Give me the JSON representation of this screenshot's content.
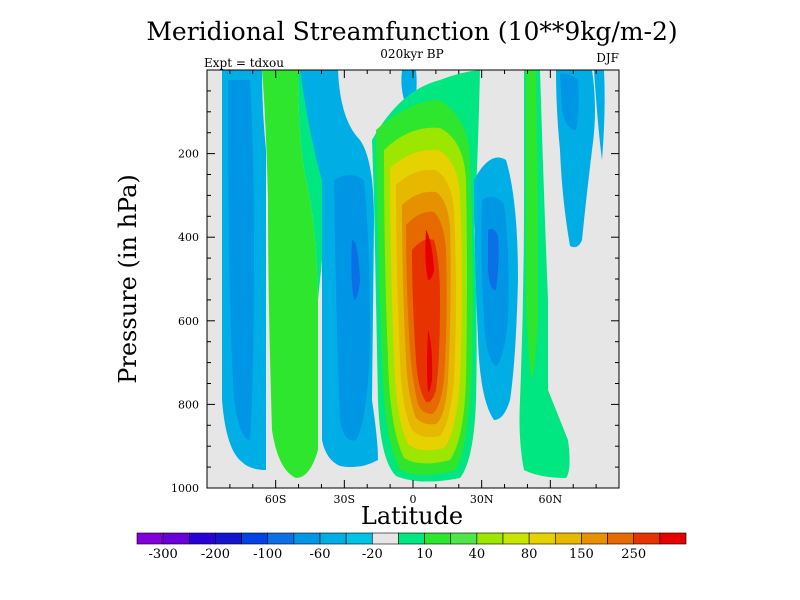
{
  "chart_data": {
    "type": "heatmap",
    "title": "Meridional Streamfunction (10**9kg/m-2)",
    "left_label": "Expt = tdxou",
    "center_label": "020kyr BP",
    "right_label": "DJF",
    "xlabel": "Latitude",
    "ylabel": "Pressure (in hPa)",
    "xlim": [
      -90,
      90
    ],
    "ylim": [
      1000,
      0
    ],
    "y_ticks": [
      "200",
      "400",
      "600",
      "800",
      "1000"
    ],
    "y_tick_values": [
      200,
      400,
      600,
      800,
      1000
    ],
    "x_ticks": [
      "60S",
      "30S",
      "0",
      "30N",
      "60N"
    ],
    "x_tick_values": [
      -60,
      -30,
      0,
      30,
      60
    ],
    "background_color": "#e6e6e6",
    "colorbar": {
      "labels": [
        "-300",
        "-200",
        "-100",
        "-60",
        "-20",
        "10",
        "40",
        "80",
        "150",
        "250"
      ],
      "colors": [
        "#7f00d9",
        "#6a00d9",
        "#2a00d9",
        "#1414cf",
        "#0042e6",
        "#0d6fe6",
        "#0096e6",
        "#00aee6",
        "#00c3e6",
        "#e6e6e6",
        "#00e680",
        "#2ee62e",
        "#50e64a",
        "#9ce600",
        "#c8e600",
        "#e6d200",
        "#e6b800",
        "#e69100",
        "#e66a00",
        "#e63300",
        "#e60000"
      ]
    },
    "cells": [
      {
        "name": "sh-polar-cell",
        "lat": -77,
        "p": 480,
        "value": -35
      },
      {
        "name": "sh-ferrel-cell",
        "lat": -58,
        "p": 520,
        "value": 25
      },
      {
        "name": "sh-hadley-cell",
        "lat": -28,
        "p": 600,
        "value": -50
      },
      {
        "name": "nh-hadley-cell",
        "lat": 6,
        "p": 500,
        "value": 260
      },
      {
        "name": "nh-ferrel-cell",
        "lat": 30,
        "p": 420,
        "value": -55
      },
      {
        "name": "nh-jet-band",
        "lat": 48,
        "p": 520,
        "value": 18
      },
      {
        "name": "nh-polar-cell",
        "lat": 62,
        "p": 300,
        "value": -30
      }
    ]
  }
}
